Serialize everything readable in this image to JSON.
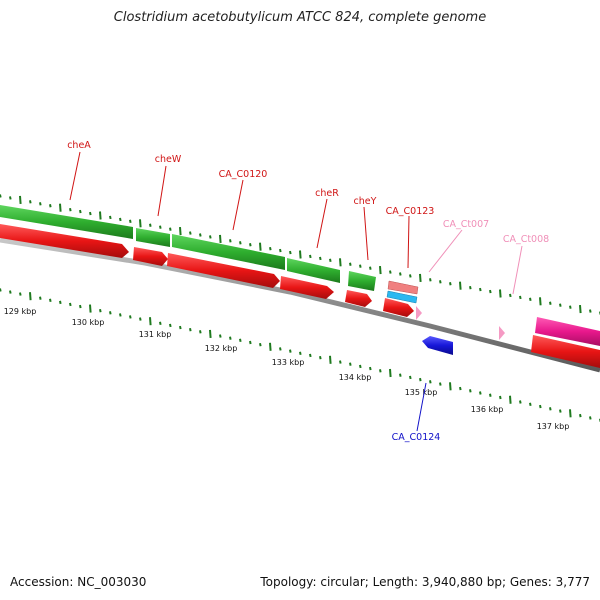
{
  "title": "Clostridium acetobutylicum ATCC 824, complete genome",
  "footer": {
    "accession": "Accession: NC_003030",
    "summary": "Topology: circular; Length: 3,940,880 bp; Genes: 3,777"
  },
  "colors": {
    "forward_cds": "#2fae2f",
    "gene_red": "#e81515",
    "ct_pink": "#f59ac4",
    "reverse_blue": "#1616d8",
    "magenta": "#e8188c",
    "backbone": "#8a8a8a",
    "tick_green": "#1f7a1f"
  },
  "ruler": [
    "129 kbp",
    "130 kbp",
    "131 kbp",
    "132 kbp",
    "133 kbp",
    "134 kbp",
    "135 kbp",
    "136 kbp",
    "137 kbp"
  ],
  "genes": [
    {
      "name": "cheA",
      "color": "#d01515"
    },
    {
      "name": "cheW",
      "color": "#d01515"
    },
    {
      "name": "CA_C0120",
      "color": "#d01515"
    },
    {
      "name": "cheR",
      "color": "#d01515"
    },
    {
      "name": "cheY",
      "color": "#d01515"
    },
    {
      "name": "CA_C0123",
      "color": "#d01515"
    },
    {
      "name": "CA_Ct007",
      "color": "#f08fb8"
    },
    {
      "name": "CA_Ct008",
      "color": "#f08fb8"
    },
    {
      "name": "CA_C0124",
      "color": "#1010c8"
    }
  ]
}
